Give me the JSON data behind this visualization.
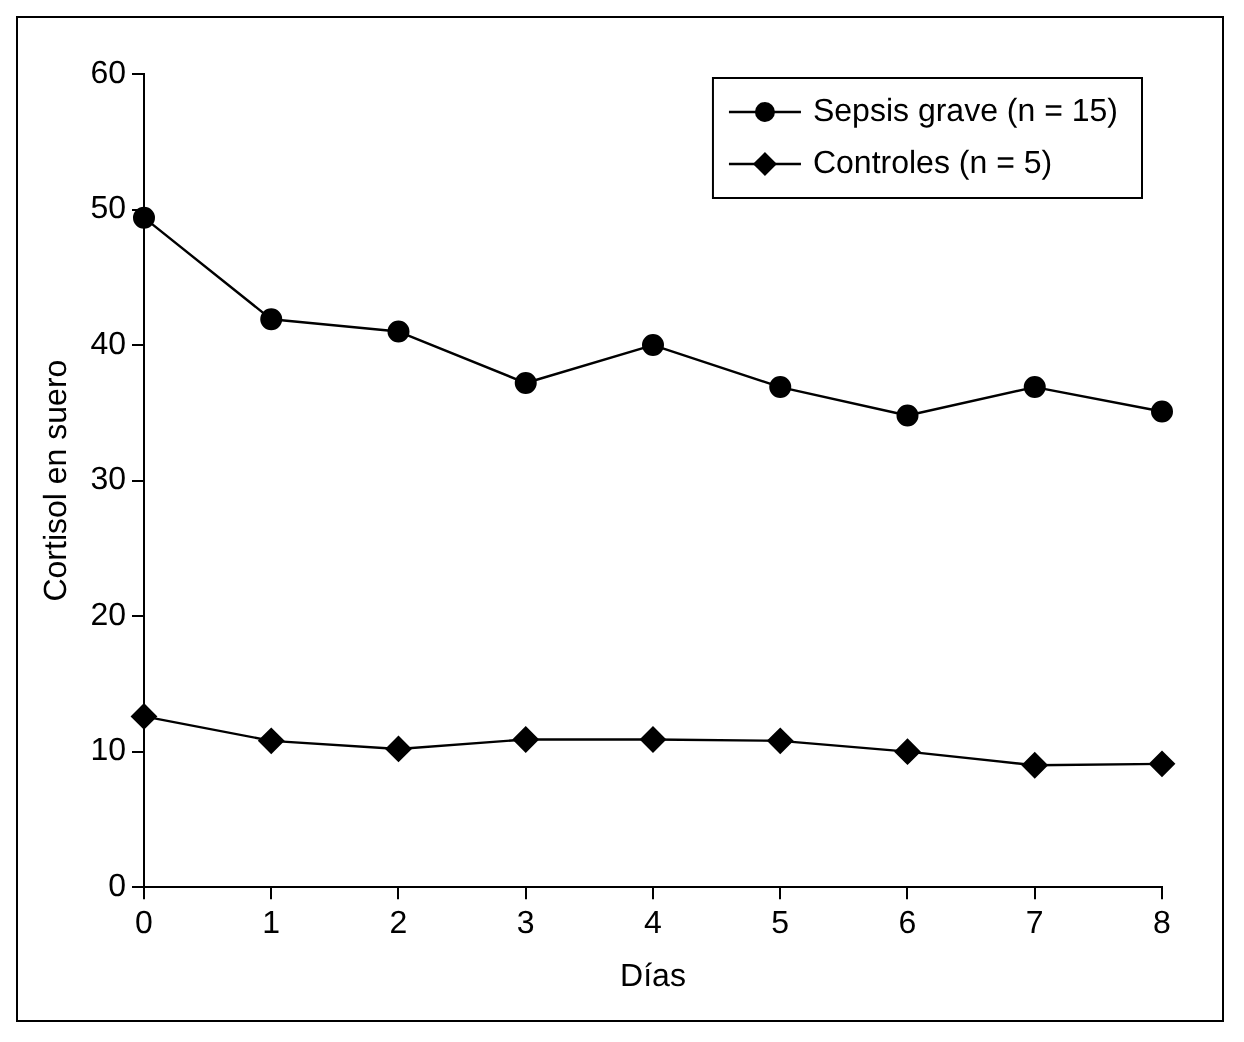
{
  "chart_data": {
    "type": "line",
    "xlabel": "Días",
    "ylabel": "Cortisol en suero",
    "x": [
      0,
      1,
      2,
      3,
      4,
      5,
      6,
      7,
      8
    ],
    "series": [
      {
        "name": "Sepsis grave (n = 15)",
        "color": "#000000",
        "marker": "circle",
        "values": [
          49.4,
          41.9,
          41.0,
          37.2,
          40.0,
          36.9,
          34.8,
          36.9,
          35.1
        ]
      },
      {
        "name": "Controles (n = 5)",
        "color": "#000000",
        "marker": "diamond",
        "values": [
          12.6,
          10.8,
          10.2,
          10.9,
          10.9,
          10.8,
          10.0,
          9.0,
          9.1
        ]
      }
    ],
    "xlim": [
      0,
      8
    ],
    "xticks": [
      0,
      1,
      2,
      3,
      4,
      5,
      6,
      7,
      8
    ],
    "ylim": [
      0,
      60
    ],
    "yticks": [
      0,
      10,
      20,
      30,
      40,
      50,
      60
    ],
    "grid": false,
    "legend": "top right",
    "line_style": "solid"
  }
}
